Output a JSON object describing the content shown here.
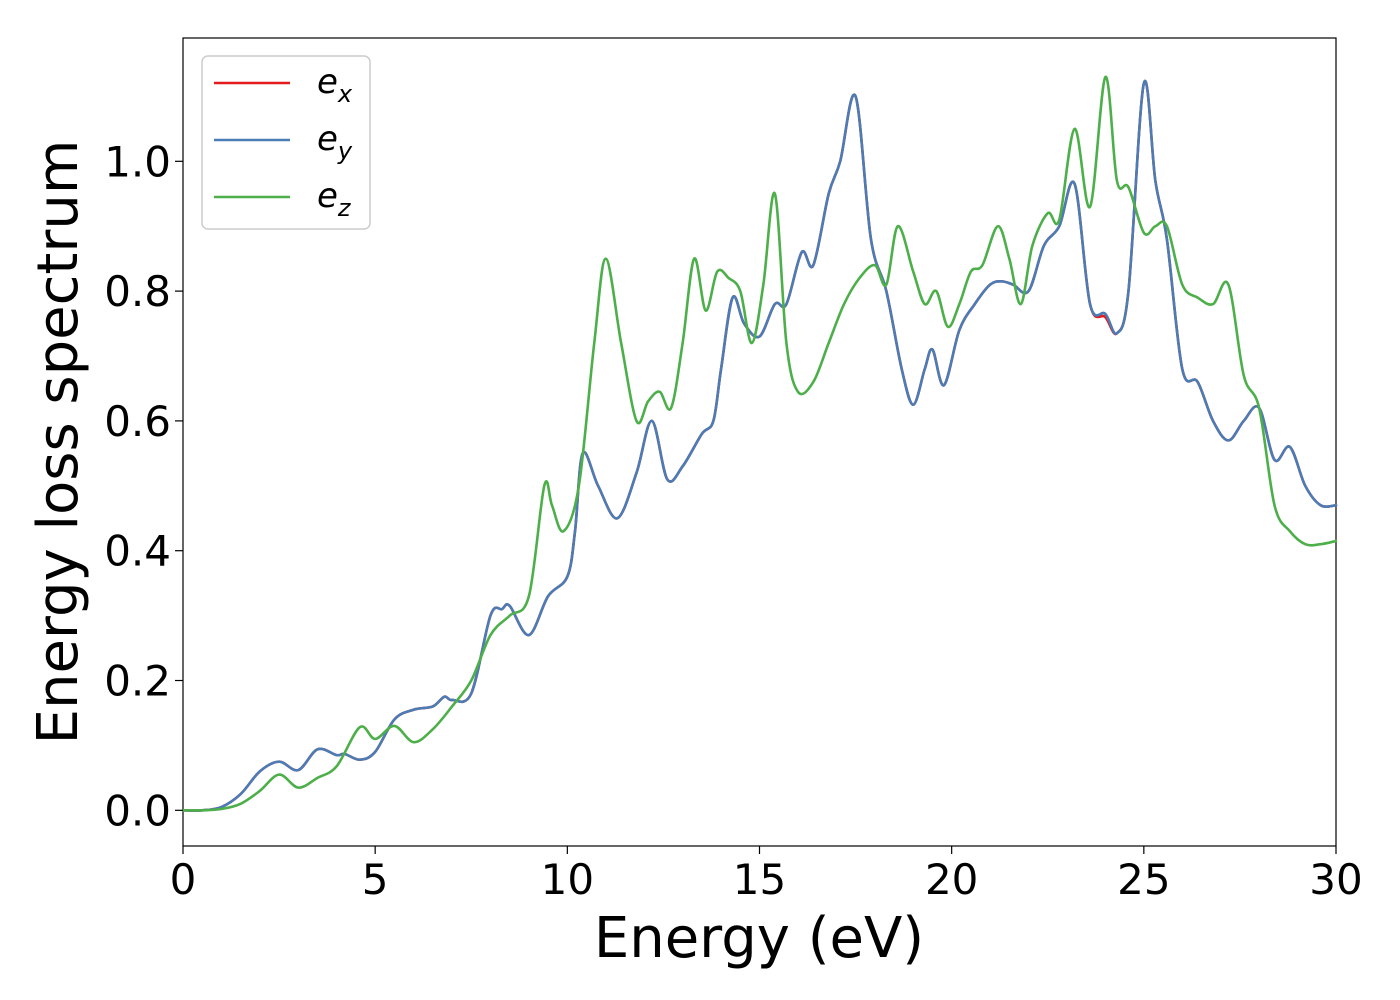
{
  "chart_data": {
    "type": "line",
    "title": "",
    "xlabel": "Energy (eV)",
    "ylabel": "Energy loss spectrum",
    "xlim": [
      0,
      30
    ],
    "ylim": [
      -0.055,
      1.19
    ],
    "xticks": [
      "0",
      "5",
      "10",
      "15",
      "20",
      "25",
      "30"
    ],
    "yticks": [
      "0.0",
      "0.2",
      "0.4",
      "0.6",
      "0.8",
      "1.0"
    ],
    "grid": false,
    "legend_position": "top-left",
    "series": [
      {
        "name": "e_x",
        "legend_base": "e",
        "legend_sub": "x",
        "color": "#e41a1c",
        "x": [
          0,
          0.5,
          1.0,
          1.5,
          2.0,
          2.5,
          3.0,
          3.5,
          4.0,
          4.2,
          4.6,
          5.0,
          5.5,
          6.0,
          6.5,
          6.8,
          7.0,
          7.5,
          8.0,
          8.3,
          8.5,
          9.0,
          9.5,
          10.0,
          10.2,
          10.4,
          10.8,
          11.3,
          11.8,
          12.2,
          12.6,
          13.0,
          13.5,
          13.8,
          14.0,
          14.3,
          14.6,
          15.0,
          15.4,
          15.7,
          16.1,
          16.4,
          16.8,
          17.1,
          17.5,
          17.9,
          18.3,
          18.7,
          19.0,
          19.3,
          19.5,
          19.8,
          20.2,
          20.6,
          21.0,
          21.3,
          21.6,
          22.0,
          22.4,
          22.8,
          23.2,
          23.6,
          24.0,
          24.3,
          24.6,
          25.0,
          25.3,
          25.6,
          26.0,
          26.4,
          26.8,
          27.2,
          27.6,
          28.0,
          28.4,
          28.8,
          29.2,
          29.6,
          30.0
        ],
        "y": [
          0.0,
          0.0,
          0.005,
          0.025,
          0.06,
          0.075,
          0.062,
          0.094,
          0.085,
          0.087,
          0.078,
          0.09,
          0.14,
          0.155,
          0.16,
          0.175,
          0.17,
          0.18,
          0.3,
          0.31,
          0.315,
          0.27,
          0.33,
          0.36,
          0.43,
          0.55,
          0.5,
          0.45,
          0.52,
          0.6,
          0.51,
          0.53,
          0.58,
          0.6,
          0.68,
          0.79,
          0.75,
          0.73,
          0.78,
          0.78,
          0.86,
          0.84,
          0.95,
          1.0,
          1.1,
          0.88,
          0.8,
          0.68,
          0.625,
          0.68,
          0.71,
          0.655,
          0.74,
          0.78,
          0.81,
          0.815,
          0.81,
          0.8,
          0.87,
          0.9,
          0.965,
          0.78,
          0.76,
          0.735,
          0.8,
          1.12,
          0.97,
          0.88,
          0.68,
          0.66,
          0.6,
          0.57,
          0.6,
          0.62,
          0.54,
          0.56,
          0.5,
          0.47,
          0.47
        ]
      },
      {
        "name": "e_y",
        "legend_base": "e",
        "legend_sub": "y",
        "color": "#4a7cb5",
        "x": [
          0,
          0.5,
          1.0,
          1.5,
          2.0,
          2.5,
          3.0,
          3.5,
          4.0,
          4.2,
          4.6,
          5.0,
          5.5,
          6.0,
          6.5,
          6.8,
          7.0,
          7.5,
          8.0,
          8.3,
          8.5,
          9.0,
          9.5,
          10.0,
          10.2,
          10.4,
          10.8,
          11.3,
          11.8,
          12.2,
          12.6,
          13.0,
          13.5,
          13.8,
          14.0,
          14.3,
          14.6,
          15.0,
          15.4,
          15.7,
          16.1,
          16.4,
          16.8,
          17.1,
          17.5,
          17.9,
          18.3,
          18.7,
          19.0,
          19.3,
          19.5,
          19.8,
          20.2,
          20.6,
          21.0,
          21.3,
          21.6,
          22.0,
          22.4,
          22.8,
          23.2,
          23.6,
          24.0,
          24.3,
          24.6,
          25.0,
          25.3,
          25.6,
          26.0,
          26.4,
          26.8,
          27.2,
          27.6,
          28.0,
          28.4,
          28.8,
          29.2,
          29.6,
          30.0
        ],
        "y": [
          0.0,
          0.0,
          0.005,
          0.025,
          0.06,
          0.075,
          0.062,
          0.094,
          0.085,
          0.087,
          0.078,
          0.09,
          0.14,
          0.155,
          0.16,
          0.175,
          0.17,
          0.18,
          0.3,
          0.31,
          0.315,
          0.27,
          0.33,
          0.36,
          0.43,
          0.55,
          0.5,
          0.45,
          0.52,
          0.6,
          0.51,
          0.53,
          0.58,
          0.6,
          0.68,
          0.79,
          0.75,
          0.73,
          0.78,
          0.78,
          0.86,
          0.84,
          0.95,
          1.0,
          1.1,
          0.88,
          0.8,
          0.68,
          0.625,
          0.68,
          0.71,
          0.655,
          0.74,
          0.78,
          0.81,
          0.815,
          0.81,
          0.8,
          0.87,
          0.9,
          0.965,
          0.78,
          0.765,
          0.735,
          0.8,
          1.12,
          0.97,
          0.88,
          0.68,
          0.66,
          0.6,
          0.57,
          0.6,
          0.62,
          0.54,
          0.56,
          0.5,
          0.47,
          0.47
        ]
      },
      {
        "name": "e_z",
        "legend_base": "e",
        "legend_sub": "z",
        "color": "#4daf4a",
        "x": [
          0,
          0.5,
          1.0,
          1.5,
          2.0,
          2.5,
          3.0,
          3.5,
          4.0,
          4.6,
          5.0,
          5.5,
          6.0,
          6.5,
          7.0,
          7.5,
          8.0,
          8.5,
          9.0,
          9.4,
          9.6,
          9.9,
          10.3,
          10.7,
          11.0,
          11.4,
          11.8,
          12.1,
          12.4,
          12.7,
          13.0,
          13.3,
          13.6,
          13.9,
          14.2,
          14.5,
          14.8,
          15.1,
          15.4,
          15.7,
          16.0,
          16.4,
          16.8,
          17.2,
          17.6,
          18.0,
          18.3,
          18.6,
          19.0,
          19.3,
          19.6,
          19.9,
          20.2,
          20.5,
          20.8,
          21.2,
          21.5,
          21.8,
          22.1,
          22.5,
          22.8,
          23.2,
          23.6,
          24.0,
          24.3,
          24.6,
          25.0,
          25.3,
          25.6,
          26.0,
          26.4,
          26.8,
          27.2,
          27.6,
          28.0,
          28.4,
          28.8,
          29.2,
          29.6,
          30.0
        ],
        "y": [
          0.0,
          0.0,
          0.002,
          0.01,
          0.03,
          0.055,
          0.035,
          0.05,
          0.068,
          0.128,
          0.11,
          0.13,
          0.105,
          0.125,
          0.16,
          0.2,
          0.27,
          0.3,
          0.33,
          0.5,
          0.47,
          0.43,
          0.5,
          0.72,
          0.85,
          0.72,
          0.6,
          0.63,
          0.645,
          0.62,
          0.72,
          0.85,
          0.77,
          0.83,
          0.82,
          0.8,
          0.72,
          0.81,
          0.95,
          0.72,
          0.645,
          0.66,
          0.72,
          0.78,
          0.82,
          0.84,
          0.81,
          0.9,
          0.83,
          0.78,
          0.8,
          0.745,
          0.78,
          0.83,
          0.84,
          0.9,
          0.85,
          0.78,
          0.87,
          0.92,
          0.91,
          1.05,
          0.93,
          1.13,
          0.97,
          0.96,
          0.89,
          0.9,
          0.9,
          0.81,
          0.79,
          0.78,
          0.81,
          0.67,
          0.62,
          0.47,
          0.43,
          0.41,
          0.41,
          0.415
        ]
      }
    ]
  }
}
